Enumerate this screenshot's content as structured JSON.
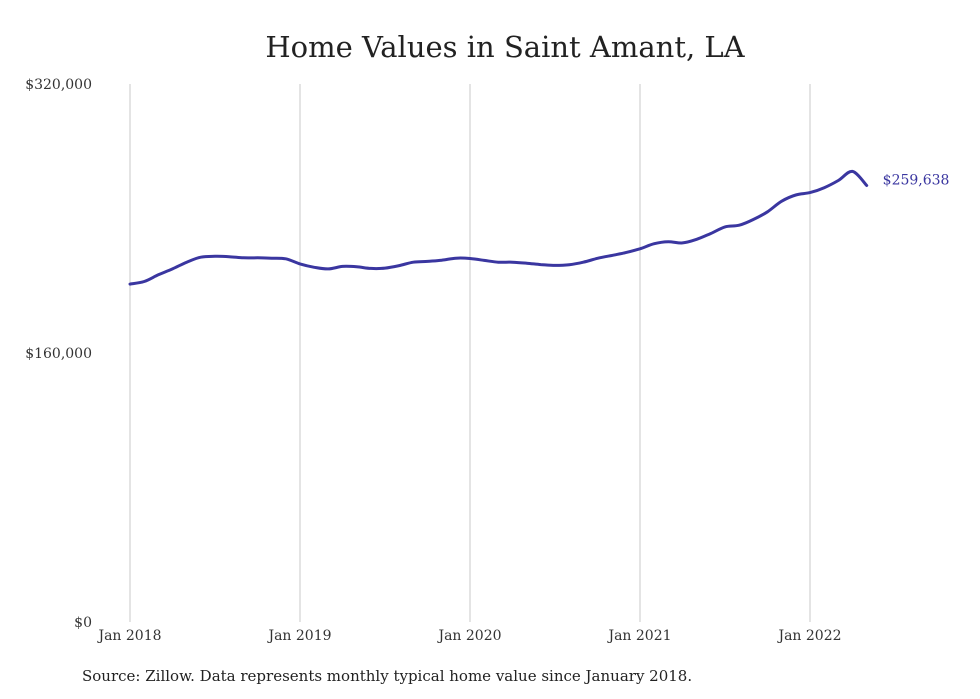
{
  "chart_data": {
    "type": "line",
    "title": "Home Values in Saint Amant, LA",
    "xlabel": "",
    "ylabel": "",
    "x_ticks": [
      "Jan 2018",
      "Jan 2019",
      "Jan 2020",
      "Jan 2021",
      "Jan 2022"
    ],
    "y_ticks": [
      "$0",
      "$160,000",
      "$320,000"
    ],
    "ylim": [
      0,
      320000
    ],
    "xlim": [
      "2018-01",
      "2022-06"
    ],
    "grid": "vertical",
    "line_color": "#3a36a0",
    "grid_color": "#c8c8c8",
    "end_label": "$259,638",
    "series": [
      {
        "x": [
          "2018-01",
          "2018-02",
          "2018-03",
          "2018-04",
          "2018-05",
          "2018-06",
          "2018-07",
          "2018-08",
          "2018-09",
          "2018-10",
          "2018-11",
          "2018-12",
          "2019-01",
          "2019-02",
          "2019-03",
          "2019-04",
          "2019-05",
          "2019-06",
          "2019-07",
          "2019-08",
          "2019-09",
          "2019-10",
          "2019-11",
          "2019-12",
          "2020-01",
          "2020-02",
          "2020-03",
          "2020-04",
          "2020-05",
          "2020-06",
          "2020-07",
          "2020-08",
          "2020-09",
          "2020-10",
          "2020-11",
          "2020-12",
          "2021-01",
          "2021-02",
          "2021-03",
          "2021-04",
          "2021-05",
          "2021-06",
          "2021-07",
          "2021-08",
          "2021-09",
          "2021-10",
          "2021-11",
          "2021-12",
          "2022-01",
          "2022-02",
          "2022-03",
          "2022-04",
          "2022-05"
        ],
        "values": [
          201000,
          202500,
          206500,
          210000,
          214000,
          217000,
          217500,
          217300,
          216600,
          216600,
          216400,
          216000,
          213000,
          211000,
          210000,
          211500,
          211300,
          210300,
          210500,
          212000,
          214000,
          214500,
          215200,
          216400,
          216200,
          215100,
          214000,
          214000,
          213400,
          212600,
          212100,
          212500,
          214000,
          216300,
          218000,
          219700,
          222000,
          225000,
          226200,
          225500,
          227600,
          231100,
          235000,
          236000,
          239400,
          244000,
          250300,
          254000,
          255400,
          258300,
          262600,
          268000,
          259638
        ]
      }
    ]
  },
  "source": "Source: Zillow. Data represents monthly typical home value since January 2018."
}
